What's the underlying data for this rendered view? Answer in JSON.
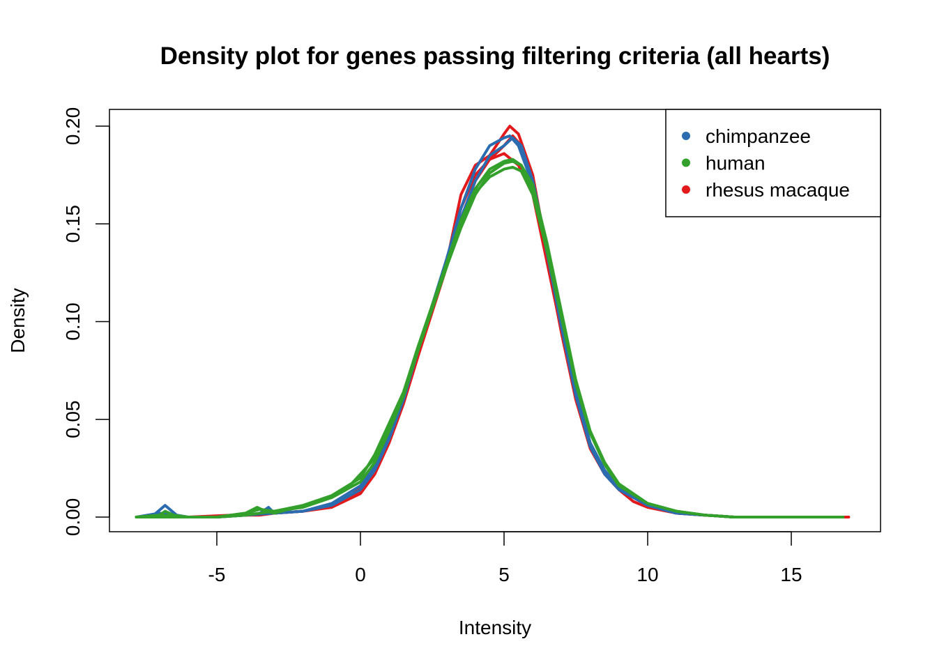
{
  "chart_data": {
    "type": "line",
    "title": "Density plot for genes passing filtering criteria (all hearts)",
    "xlabel": "Intensity",
    "ylabel": "Density",
    "xlim": [
      -8,
      17
    ],
    "ylim": [
      0,
      0.2
    ],
    "xticks": [
      "-5",
      "0",
      "5",
      "10",
      "15"
    ],
    "yticks": [
      "0.00",
      "0.05",
      "0.10",
      "0.15",
      "0.20"
    ],
    "grid": false,
    "legend_position": "top-right",
    "colors": {
      "chimpanzee": "#2b6cb0",
      "human": "#33a02c",
      "rhesus macaque": "#e31a1c"
    },
    "legend": [
      {
        "label": "chimpanzee",
        "color": "#2b6cb0"
      },
      {
        "label": "human",
        "color": "#33a02c"
      },
      {
        "label": "rhesus macaque",
        "color": "#e31a1c"
      }
    ],
    "series": [
      {
        "group": "rhesus macaque",
        "color": "#e31a1c",
        "x": [
          -7.8,
          -7.0,
          -6.0,
          -5.0,
          -4.5,
          -4.0,
          -3.5,
          -3.0,
          -2.0,
          -1.0,
          -0.5,
          0.0,
          0.5,
          1.0,
          1.5,
          2.0,
          3.0,
          3.5,
          4.0,
          4.5,
          5.0,
          5.2,
          5.5,
          6.0,
          6.5,
          7.0,
          7.5,
          8.0,
          8.5,
          9.0,
          9.5,
          10.0,
          11.0,
          12.0,
          13.0,
          14.0,
          15.0,
          16.0,
          17.0
        ],
        "y": [
          0,
          0,
          0,
          0,
          0.001,
          0.001,
          0.001,
          0.002,
          0.003,
          0.006,
          0.009,
          0.015,
          0.025,
          0.04,
          0.06,
          0.085,
          0.13,
          0.165,
          0.18,
          0.185,
          0.196,
          0.2,
          0.196,
          0.175,
          0.135,
          0.095,
          0.06,
          0.035,
          0.022,
          0.014,
          0.008,
          0.005,
          0.002,
          0.001,
          0,
          0,
          0,
          0,
          0
        ]
      },
      {
        "group": "rhesus macaque",
        "color": "#e31a1c",
        "x": [
          -7.8,
          -7.0,
          -6.0,
          -5.0,
          -4.0,
          -3.0,
          -2.0,
          -1.0,
          0.0,
          0.5,
          1.0,
          1.5,
          2.0,
          3.0,
          3.5,
          4.0,
          4.5,
          5.0,
          5.3,
          5.6,
          6.0,
          6.5,
          7.0,
          7.5,
          8.0,
          8.5,
          9.0,
          10.0,
          11.0,
          12.0,
          13.0,
          15.0,
          16.8
        ],
        "y": [
          0,
          0,
          0,
          0,
          0.001,
          0.002,
          0.003,
          0.005,
          0.012,
          0.022,
          0.038,
          0.058,
          0.082,
          0.128,
          0.152,
          0.172,
          0.183,
          0.19,
          0.195,
          0.19,
          0.17,
          0.132,
          0.094,
          0.06,
          0.036,
          0.023,
          0.015,
          0.006,
          0.002,
          0.001,
          0,
          0,
          0
        ]
      },
      {
        "group": "rhesus macaque",
        "color": "#e31a1c",
        "x": [
          -7.8,
          -6.0,
          -4.5,
          -4.0,
          -3.0,
          -2.0,
          -1.0,
          0.0,
          0.5,
          1.0,
          1.5,
          2.0,
          3.0,
          3.5,
          4.0,
          4.5,
          5.0,
          5.5,
          6.0,
          6.5,
          7.0,
          7.5,
          8.0,
          8.5,
          9.0,
          10.0,
          11.0,
          12.0,
          13.0,
          15.0,
          16.8
        ],
        "y": [
          0,
          0,
          0.001,
          0.001,
          0.002,
          0.003,
          0.006,
          0.013,
          0.023,
          0.039,
          0.059,
          0.083,
          0.13,
          0.158,
          0.175,
          0.183,
          0.186,
          0.18,
          0.165,
          0.13,
          0.095,
          0.061,
          0.037,
          0.023,
          0.015,
          0.006,
          0.002,
          0.001,
          0,
          0,
          0
        ]
      },
      {
        "group": "chimpanzee",
        "color": "#2b6cb0",
        "x": [
          -7.8,
          -7.2,
          -6.8,
          -6.4,
          -6.0,
          -5.0,
          -4.0,
          -3.5,
          -3.2,
          -3.0,
          -2.0,
          -1.0,
          0.0,
          0.5,
          1.0,
          1.5,
          2.0,
          3.0,
          3.5,
          4.0,
          4.5,
          5.0,
          5.2,
          5.5,
          6.0,
          6.5,
          7.0,
          7.5,
          8.0,
          8.5,
          9.0,
          10.0,
          11.0,
          12.0,
          13.0,
          15.0,
          16.8
        ],
        "y": [
          0,
          0.001,
          0.006,
          0.001,
          0,
          0,
          0.001,
          0.002,
          0.005,
          0.002,
          0.003,
          0.006,
          0.014,
          0.024,
          0.04,
          0.06,
          0.085,
          0.132,
          0.158,
          0.178,
          0.19,
          0.194,
          0.195,
          0.19,
          0.17,
          0.135,
          0.097,
          0.062,
          0.036,
          0.022,
          0.014,
          0.006,
          0.002,
          0.001,
          0,
          0,
          0
        ]
      },
      {
        "group": "chimpanzee",
        "color": "#2b6cb0",
        "x": [
          -7.8,
          -7.0,
          -6.0,
          -5.0,
          -4.0,
          -3.0,
          -2.0,
          -1.0,
          0.0,
          0.5,
          1.0,
          1.5,
          2.0,
          3.0,
          3.5,
          4.0,
          4.5,
          5.0,
          5.3,
          5.6,
          6.0,
          6.5,
          7.0,
          7.5,
          8.0,
          8.5,
          9.0,
          10.0,
          11.0,
          12.0,
          13.0,
          15.0,
          16.8
        ],
        "y": [
          0,
          0.002,
          0,
          0,
          0.001,
          0.002,
          0.003,
          0.007,
          0.016,
          0.026,
          0.042,
          0.062,
          0.086,
          0.13,
          0.153,
          0.172,
          0.185,
          0.19,
          0.194,
          0.19,
          0.172,
          0.138,
          0.1,
          0.065,
          0.038,
          0.024,
          0.015,
          0.006,
          0.002,
          0.001,
          0,
          0,
          0
        ]
      },
      {
        "group": "human",
        "color": "#33a02c",
        "x": [
          -7.8,
          -7.0,
          -6.8,
          -6.5,
          -6.0,
          -5.0,
          -4.0,
          -3.6,
          -3.3,
          -3.0,
          -2.0,
          -1.0,
          -0.5,
          0.0,
          0.5,
          1.0,
          1.5,
          2.0,
          3.0,
          3.5,
          4.0,
          4.5,
          5.0,
          5.3,
          5.6,
          6.0,
          6.5,
          7.0,
          7.5,
          8.0,
          8.5,
          9.0,
          10.0,
          11.0,
          12.0,
          13.0,
          15.0,
          16.8
        ],
        "y": [
          0,
          0.001,
          0.003,
          0.001,
          0,
          0,
          0.002,
          0.005,
          0.003,
          0.002,
          0.006,
          0.01,
          0.014,
          0.022,
          0.03,
          0.045,
          0.062,
          0.085,
          0.128,
          0.148,
          0.165,
          0.176,
          0.181,
          0.182,
          0.18,
          0.17,
          0.14,
          0.105,
          0.07,
          0.044,
          0.028,
          0.017,
          0.007,
          0.003,
          0.001,
          0,
          0,
          0
        ]
      },
      {
        "group": "human",
        "color": "#33a02c",
        "x": [
          -7.8,
          -7.0,
          -6.0,
          -5.0,
          -4.0,
          -3.5,
          -3.0,
          -2.0,
          -1.0,
          0.0,
          0.5,
          1.0,
          1.5,
          2.0,
          3.0,
          3.5,
          4.0,
          4.5,
          5.0,
          5.3,
          5.6,
          6.0,
          6.5,
          7.0,
          7.5,
          8.0,
          8.5,
          9.0,
          10.0,
          11.0,
          12.0,
          13.0,
          15.0,
          16.8
        ],
        "y": [
          0,
          0.001,
          0,
          0,
          0.002,
          0.004,
          0.003,
          0.006,
          0.011,
          0.02,
          0.032,
          0.048,
          0.064,
          0.087,
          0.13,
          0.152,
          0.168,
          0.178,
          0.182,
          0.183,
          0.18,
          0.168,
          0.138,
          0.103,
          0.069,
          0.043,
          0.027,
          0.016,
          0.007,
          0.003,
          0.001,
          0,
          0,
          0
        ]
      },
      {
        "group": "human",
        "color": "#33a02c",
        "x": [
          -7.8,
          -6.0,
          -5.0,
          -4.0,
          -3.0,
          -2.0,
          -1.0,
          0.0,
          0.5,
          1.0,
          1.5,
          2.0,
          3.0,
          3.5,
          4.0,
          4.5,
          5.0,
          5.3,
          5.6,
          6.0,
          6.5,
          7.0,
          7.5,
          8.0,
          8.5,
          9.0,
          10.0,
          11.0,
          12.0,
          13.0,
          15.0,
          16.8
        ],
        "y": [
          0,
          0,
          0,
          0.001,
          0.003,
          0.005,
          0.01,
          0.018,
          0.028,
          0.044,
          0.062,
          0.086,
          0.128,
          0.15,
          0.166,
          0.174,
          0.178,
          0.179,
          0.177,
          0.165,
          0.136,
          0.102,
          0.068,
          0.043,
          0.027,
          0.016,
          0.007,
          0.003,
          0.001,
          0,
          0,
          0
        ]
      }
    ]
  }
}
